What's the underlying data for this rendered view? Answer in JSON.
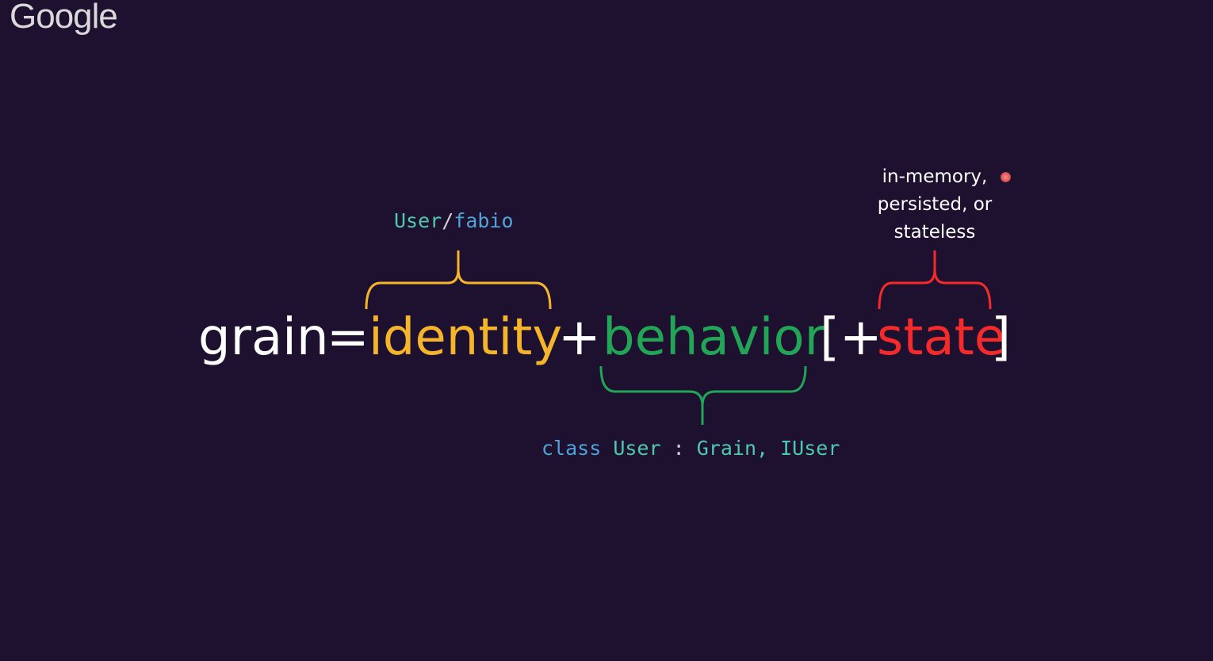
{
  "logo": {
    "text": "Google"
  },
  "equation": {
    "grain": "grain",
    "equals": "=",
    "identity": "identity",
    "plus1": "+",
    "behavior": "behavior",
    "open_bracket": "[+",
    "state": "state",
    "close_bracket": "]"
  },
  "annotations": {
    "identity_label": {
      "user": "User",
      "slash": "/",
      "fabio": "fabio"
    },
    "behavior_label": {
      "class_kw": "class",
      "user": "User",
      "colon": ":",
      "grain": "Grain,",
      "iuser": "IUser"
    },
    "state_label": [
      "in-memory,",
      "persisted, or",
      "stateless"
    ]
  },
  "colors": {
    "background": "#1e1130",
    "identity": "#f5b52a",
    "behavior": "#22a556",
    "state": "#f52a2a",
    "code_blue": "#4fa3d8",
    "code_teal": "#4ec9b0",
    "code_light": "#9cdcfe"
  },
  "icons": {
    "pointer": "laser-pointer-dot"
  }
}
